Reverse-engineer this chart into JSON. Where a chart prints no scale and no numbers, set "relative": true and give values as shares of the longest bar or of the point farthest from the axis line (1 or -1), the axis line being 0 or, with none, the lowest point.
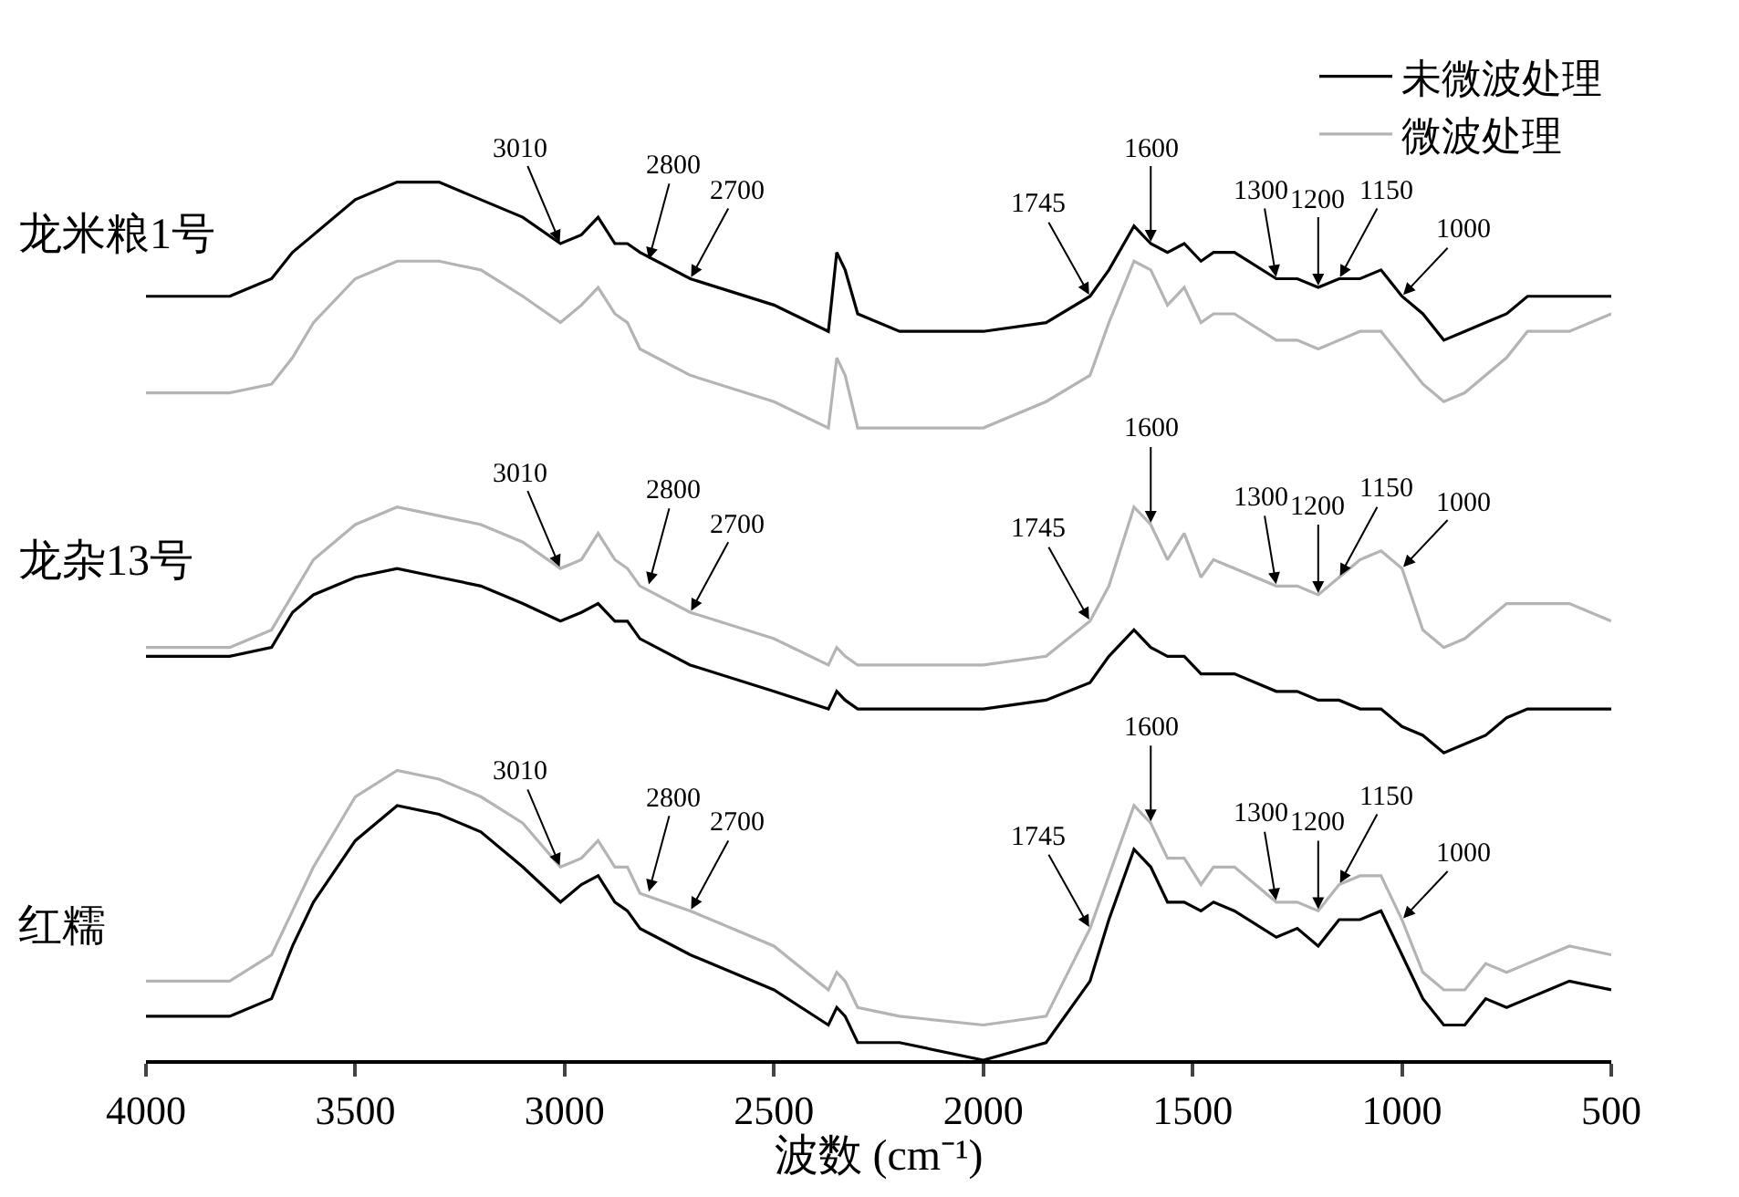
{
  "chart_data": {
    "type": "line",
    "relative": true,
    "xlabel": "波数 (cm⁻¹)",
    "xlim": [
      4000,
      500
    ],
    "xticks": [
      4000,
      3500,
      3000,
      2500,
      2000,
      1500,
      1000,
      500
    ],
    "legend": "top right",
    "x": [
      4000,
      3800,
      3700,
      3650,
      3600,
      3500,
      3400,
      3300,
      3200,
      3100,
      3010,
      2960,
      2920,
      2880,
      2850,
      2820,
      2700,
      2500,
      2370,
      2350,
      2330,
      2300,
      2200,
      2000,
      1850,
      1745,
      1700,
      1640,
      1600,
      1560,
      1520,
      1480,
      1450,
      1400,
      1300,
      1250,
      1200,
      1150,
      1100,
      1050,
      1000,
      950,
      900,
      850,
      800,
      750,
      700,
      650,
      600,
      500
    ],
    "series": [
      {
        "name": "未微波处理",
        "color": "#000000",
        "values": [
          0.87,
          0.87,
          0.89,
          0.92,
          0.94,
          0.98,
          1.0,
          1.0,
          0.98,
          0.96,
          0.93,
          0.94,
          0.96,
          0.93,
          0.93,
          0.92,
          0.89,
          0.86,
          0.83,
          0.92,
          0.9,
          0.85,
          0.83,
          0.83,
          0.84,
          0.87,
          0.9,
          0.95,
          0.93,
          0.92,
          0.93,
          0.91,
          0.92,
          0.92,
          0.89,
          0.89,
          0.88,
          0.89,
          0.89,
          0.9,
          0.87,
          0.85,
          0.82,
          0.83,
          0.84,
          0.85,
          0.87,
          0.87,
          0.87,
          0.87
        ]
      },
      {
        "name": "微波处理",
        "color": "#b4b4b4",
        "values": [
          0.76,
          0.76,
          0.77,
          0.8,
          0.84,
          0.89,
          0.91,
          0.91,
          0.9,
          0.87,
          0.84,
          0.86,
          0.88,
          0.85,
          0.84,
          0.81,
          0.78,
          0.75,
          0.72,
          0.8,
          0.78,
          0.72,
          0.72,
          0.72,
          0.75,
          0.78,
          0.84,
          0.91,
          0.9,
          0.86,
          0.88,
          0.84,
          0.85,
          0.85,
          0.82,
          0.82,
          0.81,
          0.82,
          0.83,
          0.83,
          0.8,
          0.77,
          0.75,
          0.76,
          0.78,
          0.8,
          0.83,
          0.83,
          0.83,
          0.85
        ]
      },
      {
        "color": "#000000",
        "values": [
          0.46,
          0.46,
          0.47,
          0.51,
          0.53,
          0.55,
          0.56,
          0.55,
          0.54,
          0.52,
          0.5,
          0.51,
          0.52,
          0.5,
          0.5,
          0.48,
          0.45,
          0.42,
          0.4,
          0.42,
          0.41,
          0.4,
          0.4,
          0.4,
          0.41,
          0.43,
          0.46,
          0.49,
          0.47,
          0.46,
          0.46,
          0.44,
          0.44,
          0.44,
          0.42,
          0.42,
          0.41,
          0.41,
          0.4,
          0.4,
          0.38,
          0.37,
          0.35,
          0.36,
          0.37,
          0.39,
          0.4,
          0.4,
          0.4,
          0.4
        ]
      },
      {
        "color": "#b4b4b4",
        "values": [
          0.47,
          0.47,
          0.49,
          0.53,
          0.57,
          0.61,
          0.63,
          0.62,
          0.61,
          0.59,
          0.56,
          0.57,
          0.6,
          0.57,
          0.56,
          0.54,
          0.51,
          0.48,
          0.45,
          0.47,
          0.46,
          0.45,
          0.45,
          0.45,
          0.46,
          0.5,
          0.54,
          0.63,
          0.61,
          0.57,
          0.6,
          0.55,
          0.57,
          0.56,
          0.54,
          0.54,
          0.53,
          0.55,
          0.57,
          0.58,
          0.56,
          0.49,
          0.47,
          0.48,
          0.5,
          0.52,
          0.52,
          0.52,
          0.52,
          0.5
        ]
      },
      {
        "color": "#000000",
        "values": [
          0.05,
          0.05,
          0.07,
          0.13,
          0.18,
          0.25,
          0.29,
          0.28,
          0.26,
          0.22,
          0.18,
          0.2,
          0.21,
          0.18,
          0.17,
          0.15,
          0.12,
          0.08,
          0.04,
          0.06,
          0.05,
          0.02,
          0.02,
          0.0,
          0.02,
          0.09,
          0.16,
          0.24,
          0.22,
          0.18,
          0.18,
          0.17,
          0.18,
          0.17,
          0.14,
          0.15,
          0.13,
          0.16,
          0.16,
          0.17,
          0.12,
          0.07,
          0.04,
          0.04,
          0.07,
          0.06,
          0.07,
          0.08,
          0.09,
          0.08
        ]
      },
      {
        "color": "#b4b4b4",
        "values": [
          0.09,
          0.09,
          0.12,
          0.17,
          0.22,
          0.3,
          0.33,
          0.32,
          0.3,
          0.27,
          0.22,
          0.23,
          0.25,
          0.22,
          0.22,
          0.19,
          0.17,
          0.13,
          0.08,
          0.1,
          0.09,
          0.06,
          0.05,
          0.04,
          0.05,
          0.15,
          0.21,
          0.29,
          0.27,
          0.23,
          0.23,
          0.2,
          0.22,
          0.22,
          0.18,
          0.18,
          0.17,
          0.2,
          0.21,
          0.21,
          0.16,
          0.1,
          0.08,
          0.08,
          0.11,
          0.1,
          0.11,
          0.12,
          0.13,
          0.12
        ]
      }
    ],
    "annotations": [
      "龙米粮1号",
      "龙杂13号",
      "红糯",
      {
        "text": "3010",
        "x": 3010,
        "y": 0.93
      },
      {
        "text": "2800",
        "x": 2800,
        "y": 0.91
      },
      {
        "text": "2700",
        "x": 2700,
        "y": 0.89
      },
      {
        "text": "1745",
        "x": 1745,
        "y": 0.87
      },
      {
        "text": "1600",
        "x": 1600,
        "y": 0.93
      },
      {
        "text": "1300",
        "x": 1300,
        "y": 0.89
      },
      {
        "text": "1200",
        "x": 1200,
        "y": 0.88
      },
      {
        "text": "1150",
        "x": 1150,
        "y": 0.89
      },
      {
        "text": "1000",
        "x": 1000,
        "y": 0.87
      },
      {
        "text": "3010",
        "x": 3010,
        "y": 0.56
      },
      {
        "text": "2800",
        "x": 2800,
        "y": 0.54
      },
      {
        "text": "2700",
        "x": 2700,
        "y": 0.51
      },
      {
        "text": "1745",
        "x": 1745,
        "y": 0.5
      },
      {
        "text": "1600",
        "x": 1600,
        "y": 0.61
      },
      {
        "text": "1300",
        "x": 1300,
        "y": 0.54
      },
      {
        "text": "1200",
        "x": 1200,
        "y": 0.53
      },
      {
        "text": "1150",
        "x": 1150,
        "y": 0.55
      },
      {
        "text": "1000",
        "x": 1000,
        "y": 0.56
      },
      {
        "text": "3010",
        "x": 3010,
        "y": 0.22
      },
      {
        "text": "2800",
        "x": 2800,
        "y": 0.19
      },
      {
        "text": "2700",
        "x": 2700,
        "y": 0.17
      },
      {
        "text": "1745",
        "x": 1745,
        "y": 0.15
      },
      {
        "text": "1600",
        "x": 1600,
        "y": 0.27
      },
      {
        "text": "1300",
        "x": 1300,
        "y": 0.18
      },
      {
        "text": "1200",
        "x": 1200,
        "y": 0.17
      },
      {
        "text": "1150",
        "x": 1150,
        "y": 0.2
      },
      {
        "text": "1000",
        "x": 1000,
        "y": 0.16
      }
    ]
  }
}
